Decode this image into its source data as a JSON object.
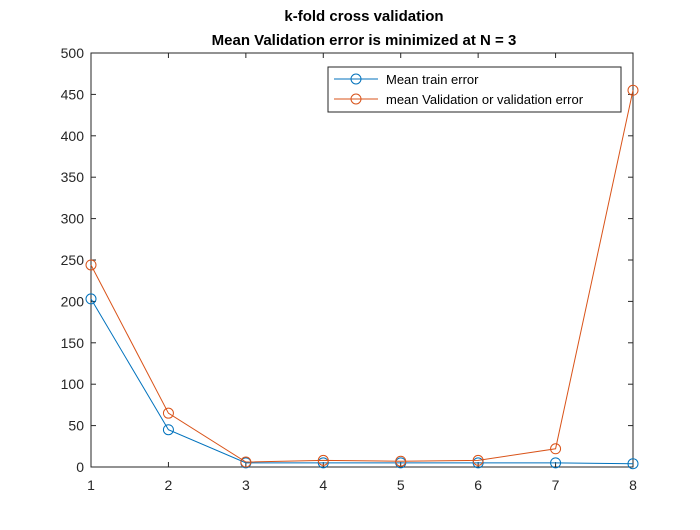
{
  "chart_data": {
    "type": "line",
    "title": "k-fold cross validation",
    "subtitle": "Mean Validation error is minimized at N = 3",
    "xlabel": "",
    "ylabel": "",
    "xlim": [
      1,
      8
    ],
    "ylim": [
      0,
      500
    ],
    "xticks": [
      "1",
      "2",
      "3",
      "4",
      "5",
      "6",
      "7",
      "8"
    ],
    "yticks": [
      "0",
      "50",
      "100",
      "150",
      "200",
      "250",
      "300",
      "350",
      "400",
      "450",
      "500"
    ],
    "grid": false,
    "legend_position": "top-right",
    "x": [
      1,
      2,
      3,
      4,
      5,
      6,
      7,
      8
    ],
    "series": [
      {
        "name": "Mean train error",
        "color": "#0072BD",
        "marker": "circle",
        "values": [
          203,
          45,
          5,
          5,
          5,
          5,
          5,
          4
        ]
      },
      {
        "name": "mean Validation or validation error",
        "color": "#D95319",
        "marker": "circle",
        "values": [
          244,
          65,
          6,
          8,
          7,
          8,
          22,
          455
        ]
      }
    ]
  }
}
